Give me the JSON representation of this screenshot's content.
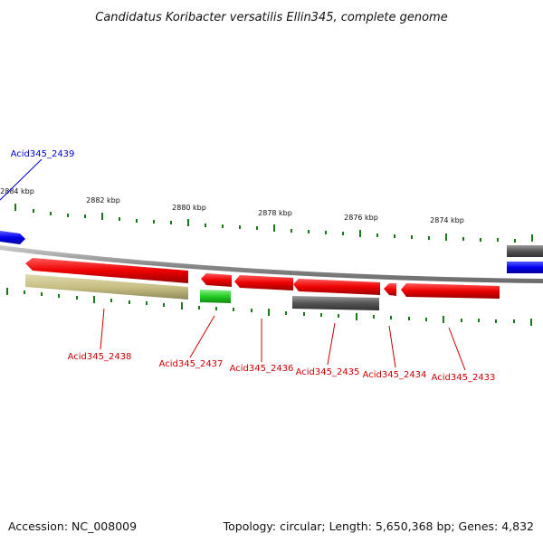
{
  "title": "Candidatus Koribacter versatilis Ellin345, complete genome",
  "footer": {
    "accession": "Accession: NC_008009",
    "summary": "Topology: circular; Length: 5,650,368 bp; Genes: 4,832"
  },
  "colors": {
    "red": "#ee0000",
    "grey": "#555555",
    "blue": "#0000ee",
    "olive": "#c8c084",
    "green": "#22cc22",
    "tick": "#1a7a1a",
    "labelRed": "#cc0000",
    "labelBlue": "#0000cc"
  },
  "scale": {
    "ticks": [
      "2884 kbp",
      "2882 kbp",
      "2880 kbp",
      "2878 kbp",
      "2876 kbp",
      "2874 kbp"
    ]
  },
  "genes": [
    {
      "name": "Acid345_2439",
      "color": "blue"
    },
    {
      "name": "Acid345_2438",
      "color": "red"
    },
    {
      "name": "Acid345_2437",
      "color": "red"
    },
    {
      "name": "Acid345_2436",
      "color": "red"
    },
    {
      "name": "Acid345_2435",
      "color": "red"
    },
    {
      "name": "Acid345_2434",
      "color": "red"
    },
    {
      "name": "Acid345_2433",
      "color": "red"
    }
  ]
}
